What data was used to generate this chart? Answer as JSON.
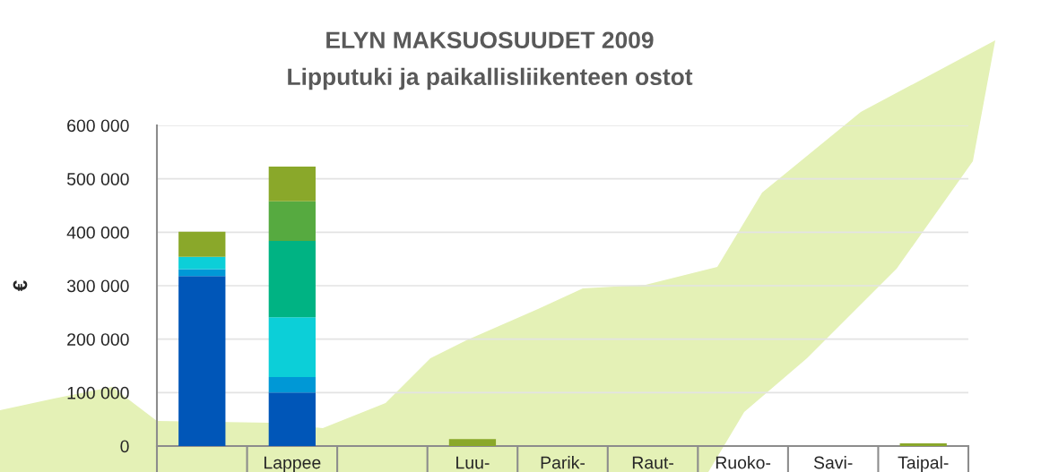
{
  "chart_data": {
    "type": "bar",
    "title": "ELYN MAKSUOSUUDET 2009",
    "subtitle": "Lipputuki ja paikallisliikenteen ostot",
    "ylabel": "€",
    "categories": [
      null,
      "Lappee",
      null,
      "Luu-",
      "Parik-",
      "Raut-",
      "Ruoko-",
      "Savi-",
      "Taipal-"
    ],
    "stacked": true,
    "series": [
      {
        "color": "#0056b8",
        "values": [
          318000,
          100000,
          null,
          null,
          null,
          null,
          null,
          null,
          null
        ]
      },
      {
        "color": "#0098d6",
        "values": [
          13000,
          29000,
          null,
          null,
          null,
          null,
          null,
          null,
          null
        ]
      },
      {
        "color": "#0ccfd8",
        "values": [
          23000,
          112000,
          null,
          null,
          null,
          null,
          null,
          null,
          null
        ]
      },
      {
        "color": "#00b383",
        "values": [
          null,
          143000,
          null,
          null,
          null,
          null,
          null,
          null,
          null
        ]
      },
      {
        "color": "#56aa40",
        "values": [
          null,
          74000,
          null,
          null,
          null,
          null,
          null,
          null,
          null
        ]
      },
      {
        "color": "#8aa82a",
        "values": [
          47000,
          65000,
          null,
          13000,
          null,
          null,
          null,
          null,
          5000
        ]
      }
    ],
    "ylim": [
      0,
      600000
    ],
    "yticks": [
      {
        "value": 0,
        "label": "0"
      },
      {
        "value": 100000,
        "label": "100 000"
      },
      {
        "value": 200000,
        "label": "200 000"
      },
      {
        "value": 300000,
        "label": "300 000"
      },
      {
        "value": 400000,
        "label": "400 000"
      },
      {
        "value": 500000,
        "label": "500 000"
      },
      {
        "value": 600000,
        "label": "600 000"
      }
    ],
    "grid": "y"
  }
}
